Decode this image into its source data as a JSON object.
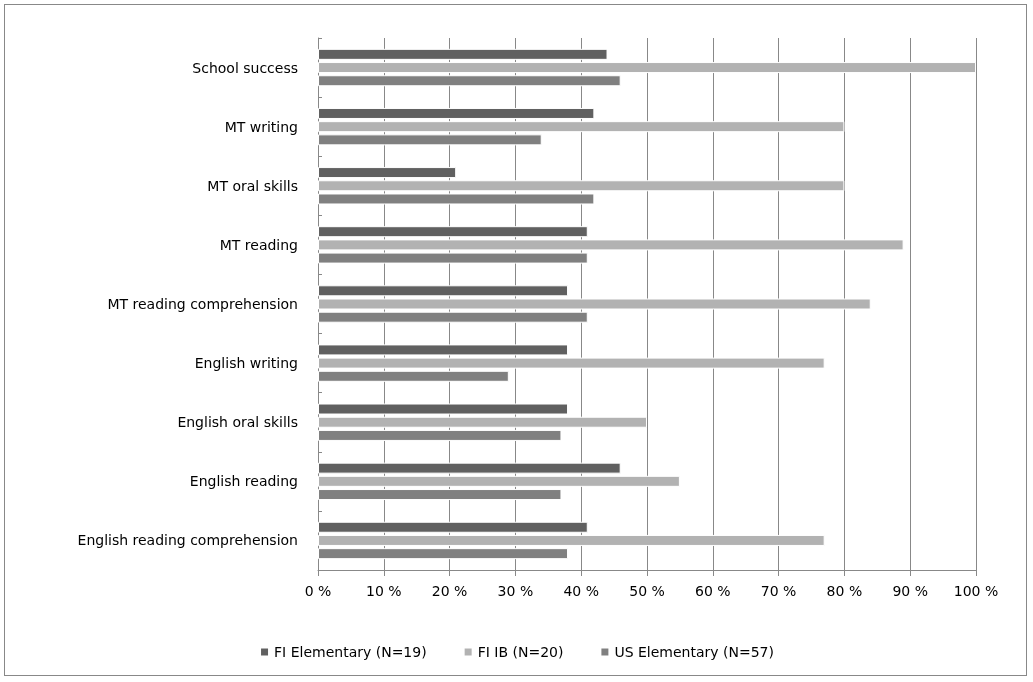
{
  "chart_data": {
    "type": "bar",
    "orientation": "horizontal",
    "categories": [
      "School success",
      "MT writing",
      "MT oral skills",
      "MT reading",
      "MT reading comprehension",
      "English writing",
      "English oral skills",
      "English reading",
      "English reading comprehension"
    ],
    "series": [
      {
        "name": "FI Elementary (N=19)",
        "color": "#606060",
        "values": [
          44,
          42,
          21,
          41,
          38,
          38,
          38,
          46,
          41
        ]
      },
      {
        "name": "FI IB (N=20)",
        "color": "#b2b2b2",
        "values": [
          100,
          80,
          80,
          89,
          84,
          77,
          50,
          55,
          77
        ]
      },
      {
        "name": "US Elementary (N=57)",
        "color": "#808080",
        "values": [
          46,
          34,
          42,
          41,
          41,
          29,
          37,
          37,
          38
        ]
      }
    ],
    "xlim": [
      0,
      100
    ],
    "xticks": [
      {
        "value": 0,
        "label": "0 %"
      },
      {
        "value": 10,
        "label": "10 %"
      },
      {
        "value": 20,
        "label": "20 %"
      },
      {
        "value": 30,
        "label": "30 %"
      },
      {
        "value": 40,
        "label": "40 %"
      },
      {
        "value": 50,
        "label": "50 %"
      },
      {
        "value": 60,
        "label": "60 %"
      },
      {
        "value": 70,
        "label": "70 %"
      },
      {
        "value": 80,
        "label": "80 %"
      },
      {
        "value": 90,
        "label": "90 %"
      },
      {
        "value": 100,
        "label": "100 %"
      }
    ],
    "grid": "x",
    "legend": "bottom"
  }
}
